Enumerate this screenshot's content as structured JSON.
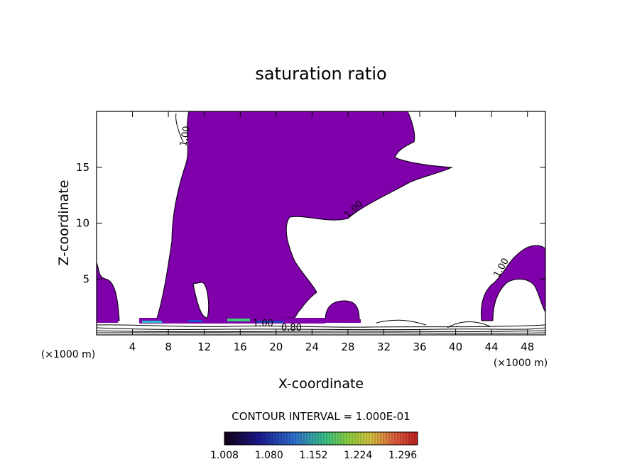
{
  "chart_data": {
    "type": "contour",
    "title": "saturation ratio",
    "xlabel": "X-coordinate",
    "ylabel": "Z-coordinate",
    "x_unit_label": "(×1000 m)",
    "z_unit_label": "(×1000 m)",
    "xlim": [
      0,
      50
    ],
    "ylim": [
      0,
      20
    ],
    "x_ticks": [
      "4",
      "8",
      "12",
      "16",
      "20",
      "24",
      "28",
      "32",
      "36",
      "40",
      "44",
      "48"
    ],
    "y_ticks": [
      "5",
      "10",
      "15"
    ],
    "contour_labels": [
      "1.00",
      "1.00",
      "1.00",
      "1.00",
      "0.80"
    ],
    "contour_interval_text": "CONTOUR INTERVAL = 1.000E-01",
    "colorbar": {
      "ticks": [
        "1.008",
        "1.080",
        "1.152",
        "1.224",
        "1.296"
      ],
      "range": [
        1.008,
        1.32
      ]
    },
    "fill_color": "#7f00aa",
    "grid": false
  }
}
